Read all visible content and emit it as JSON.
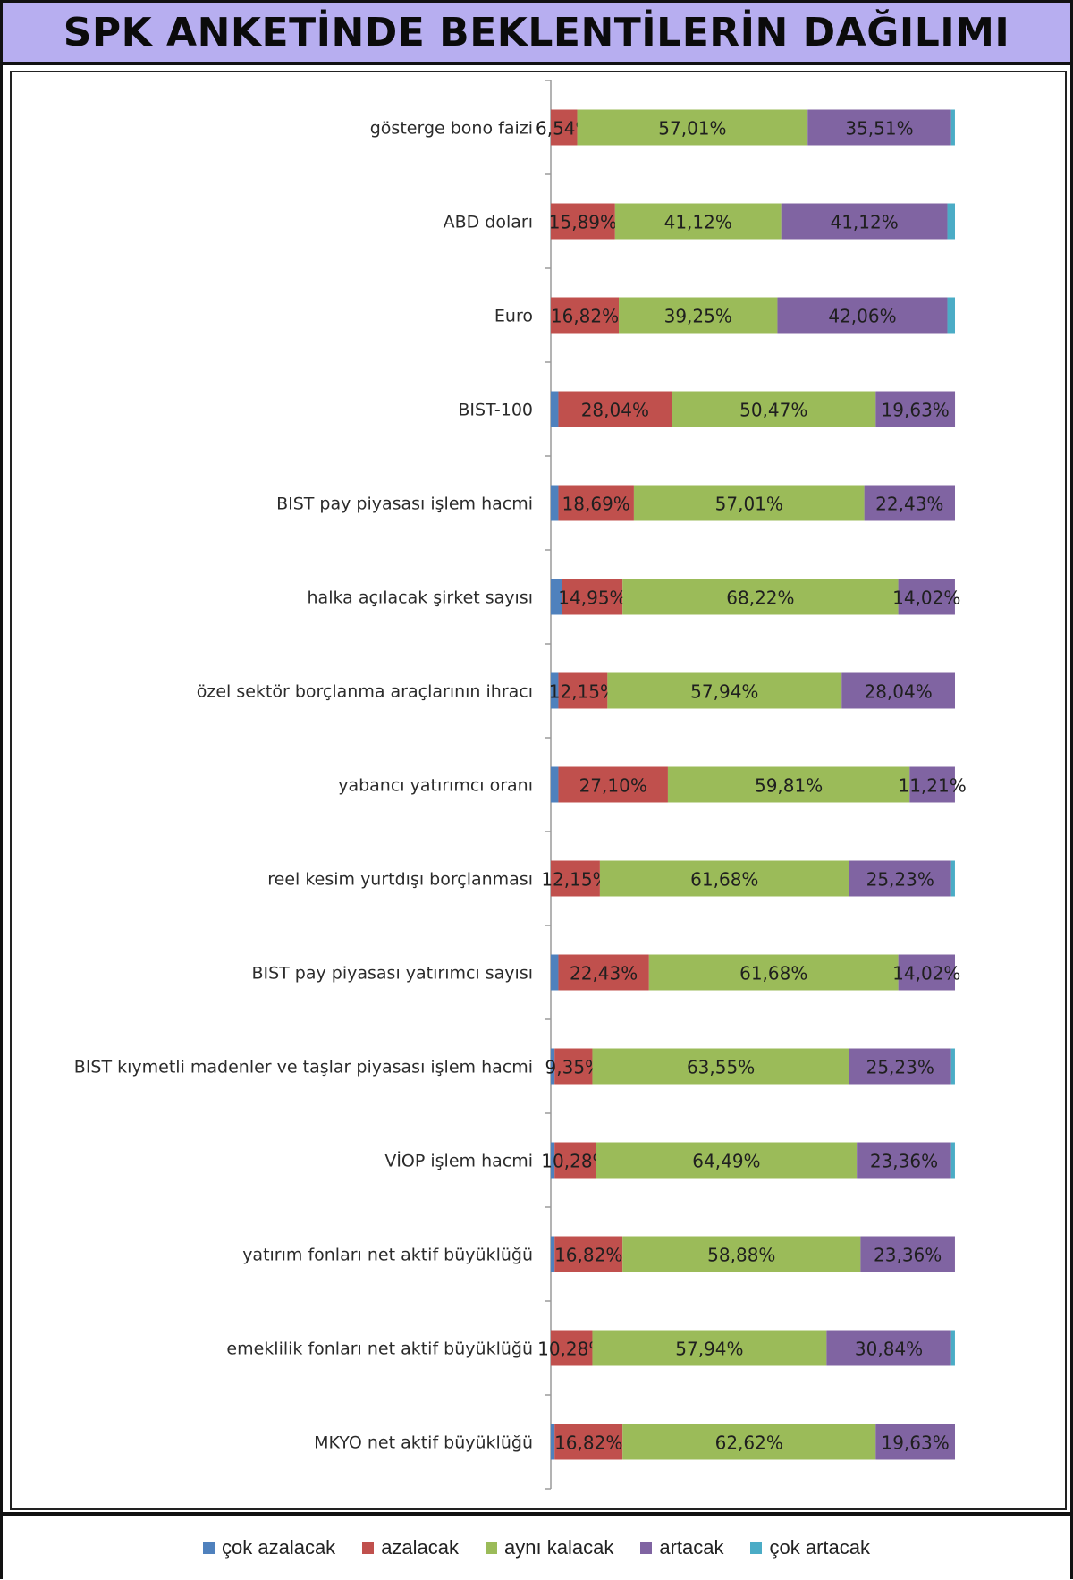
{
  "title": "SPK ANKETİNDE BEKLENTİLERİN DAĞILIMI",
  "colors": {
    "cok_azalacak": "#4f81bd",
    "azalacak": "#c0504d",
    "ayni_kalacak": "#9bbb59",
    "artacak": "#8064a2",
    "cok_artacak": "#4bacc6"
  },
  "chart_data": {
    "type": "bar",
    "orientation": "horizontal",
    "stacked": "percent",
    "title": "SPK ANKETİNDE BEKLENTİLERİN DAĞILIMI",
    "xlim": [
      0,
      100
    ],
    "grid": false,
    "legend_position": "bottom",
    "categories": [
      "gösterge bono faizi",
      "ABD doları",
      "Euro",
      "BIST-100",
      "BIST pay piyasası işlem hacmi",
      "halka açılacak şirket sayısı",
      "özel sektör borçlanma araçlarının ihracı",
      "yabancı yatırımcı oranı",
      "reel kesim yurtdışı borçlanması",
      "BIST pay piyasası yatırımcı sayısı",
      "BIST kıymetli madenler ve taşlar piyasası işlem hacmi",
      "VİOP işlem hacmi",
      "yatırım fonları net aktif büyüklüğü",
      "emeklilik fonları net aktif büyüklüğü",
      "MKYO net aktif büyüklüğü"
    ],
    "series": [
      {
        "name": "çok azalacak",
        "values": [
          0,
          0,
          0,
          1.87,
          1.87,
          2.8,
          1.87,
          1.87,
          0,
          1.87,
          0.93,
          0.93,
          0.93,
          0,
          0.93
        ]
      },
      {
        "name": "azalacak",
        "values": [
          6.54,
          15.89,
          16.82,
          28.04,
          18.69,
          14.95,
          12.15,
          27.1,
          12.15,
          22.43,
          9.35,
          10.28,
          16.82,
          10.28,
          16.82
        ]
      },
      {
        "name": "aynı kalacak",
        "values": [
          57.01,
          41.12,
          39.25,
          50.47,
          57.01,
          68.22,
          57.94,
          59.81,
          61.68,
          61.68,
          63.55,
          64.49,
          58.88,
          57.94,
          62.62
        ]
      },
      {
        "name": "artacak",
        "values": [
          35.51,
          41.12,
          42.06,
          19.63,
          22.43,
          14.02,
          28.04,
          11.21,
          25.23,
          14.02,
          25.23,
          23.36,
          23.36,
          30.84,
          19.63
        ]
      },
      {
        "name": "çok artacak",
        "values": [
          0.93,
          1.87,
          1.87,
          0,
          0,
          0,
          0,
          0,
          0.93,
          0,
          0.93,
          0.93,
          0,
          0.93,
          0
        ]
      }
    ],
    "data_labels": [
      [
        "",
        "6,54%",
        "57,01%",
        "35,51%",
        ""
      ],
      [
        "",
        "15,89%",
        "41,12%",
        "41,12%",
        ""
      ],
      [
        "",
        "16,82%",
        "39,25%",
        "42,06%",
        ""
      ],
      [
        "",
        "28,04%",
        "50,47%",
        "19,63%",
        ""
      ],
      [
        "",
        "18,69%",
        "57,01%",
        "22,43%",
        ""
      ],
      [
        "",
        "14,95%",
        "68,22%",
        "14,02%",
        ""
      ],
      [
        "",
        "12,15%",
        "57,94%",
        "28,04%",
        ""
      ],
      [
        "",
        "27,10%",
        "59,81%",
        "11,21%",
        ""
      ],
      [
        "",
        "12,15%",
        "61,68%",
        "25,23%",
        ""
      ],
      [
        "",
        "22,43%",
        "61,68%",
        "14,02%",
        ""
      ],
      [
        "",
        "9,35%",
        "63,55%",
        "25,23%",
        ""
      ],
      [
        "",
        "10,28%",
        "64,49%",
        "23,36%",
        ""
      ],
      [
        "",
        "16,82%",
        "58,88%",
        "23,36%",
        ""
      ],
      [
        "",
        "10,28%",
        "57,94%",
        "30,84%",
        ""
      ],
      [
        "",
        "16,82%",
        "62,62%",
        "19,63%",
        ""
      ]
    ]
  }
}
